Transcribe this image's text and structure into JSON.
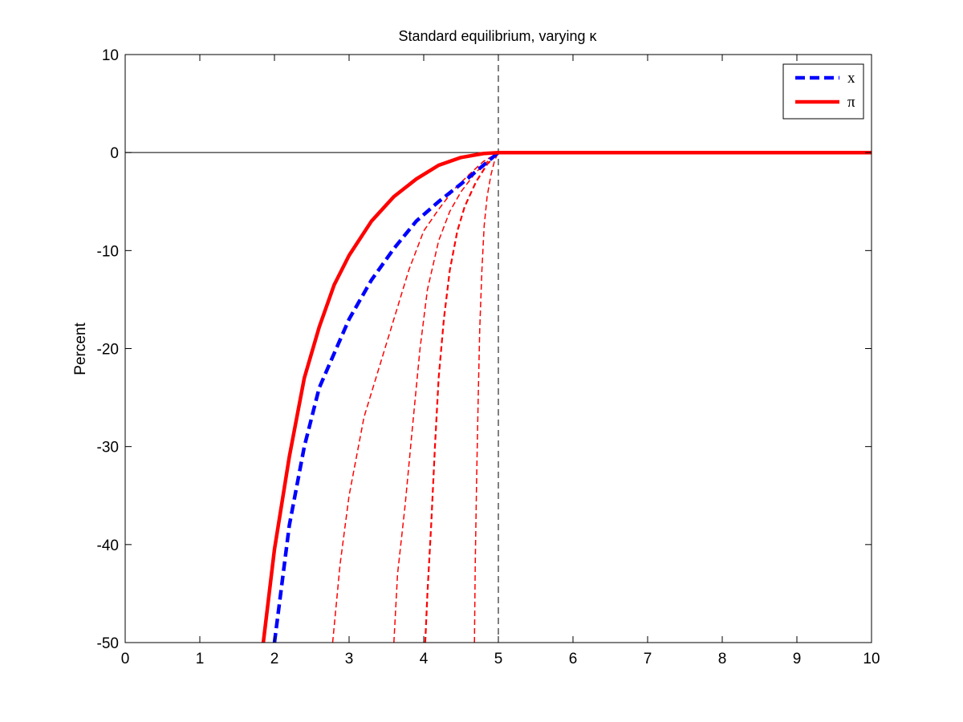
{
  "chart_data": {
    "type": "line",
    "title": "Standard equilibrium, varying κ",
    "xlabel": "",
    "ylabel": "Percent",
    "xlim": [
      0,
      10
    ],
    "ylim": [
      -50,
      10
    ],
    "xticks": [
      0,
      1,
      2,
      3,
      4,
      5,
      6,
      7,
      8,
      9,
      10
    ],
    "yticks": [
      10,
      0,
      -10,
      -20,
      -30,
      -40,
      -50
    ],
    "grid": false,
    "legend_position": "top-right",
    "reference_lines": [
      {
        "orientation": "horizontal",
        "value": 0,
        "style": "solid",
        "color": "#000000"
      },
      {
        "orientation": "vertical",
        "value": 5,
        "style": "dashed",
        "color": "#000000"
      }
    ],
    "series": [
      {
        "name": "x",
        "legend": true,
        "color": "#0000ff",
        "style": "dashed",
        "weight": "thick",
        "points": [
          [
            2.0,
            -50
          ],
          [
            2.2,
            -38
          ],
          [
            2.4,
            -30
          ],
          [
            2.6,
            -24
          ],
          [
            2.8,
            -20.5
          ],
          [
            3.0,
            -17
          ],
          [
            3.3,
            -13
          ],
          [
            3.6,
            -9.8
          ],
          [
            3.9,
            -7
          ],
          [
            4.2,
            -5
          ],
          [
            4.5,
            -3.2
          ],
          [
            4.8,
            -1.3
          ],
          [
            5.0,
            0
          ]
        ]
      },
      {
        "name": "π",
        "legend": true,
        "color": "#ff0000",
        "style": "solid",
        "weight": "thick",
        "points": [
          [
            1.85,
            -50
          ],
          [
            2.0,
            -40.5
          ],
          [
            2.2,
            -31
          ],
          [
            2.4,
            -23
          ],
          [
            2.6,
            -17.8
          ],
          [
            2.8,
            -13.5
          ],
          [
            3.0,
            -10.5
          ],
          [
            3.3,
            -7
          ],
          [
            3.6,
            -4.5
          ],
          [
            3.9,
            -2.7
          ],
          [
            4.2,
            -1.3
          ],
          [
            4.5,
            -0.5
          ],
          [
            4.8,
            -0.1
          ],
          [
            5.0,
            0
          ],
          [
            10.0,
            0
          ]
        ]
      },
      {
        "legend": false,
        "color": "#ff0000",
        "style": "dashed",
        "weight": "thin",
        "points": [
          [
            2.78,
            -50
          ],
          [
            2.88,
            -42
          ],
          [
            3.0,
            -35
          ],
          [
            3.2,
            -27
          ],
          [
            3.4,
            -22
          ],
          [
            3.6,
            -17
          ],
          [
            3.8,
            -12
          ],
          [
            4.0,
            -8
          ],
          [
            4.2,
            -5.8
          ],
          [
            4.4,
            -3.8
          ],
          [
            4.6,
            -2.3
          ],
          [
            4.8,
            -0.9
          ],
          [
            5.0,
            0
          ]
        ]
      },
      {
        "legend": false,
        "color": "#ff0000",
        "style": "dashed",
        "weight": "thin",
        "points": [
          [
            3.6,
            -50
          ],
          [
            3.65,
            -43
          ],
          [
            3.75,
            -36
          ],
          [
            3.85,
            -28
          ],
          [
            3.95,
            -20
          ],
          [
            4.05,
            -14
          ],
          [
            4.2,
            -9
          ],
          [
            4.35,
            -6
          ],
          [
            4.5,
            -4
          ],
          [
            4.7,
            -2
          ],
          [
            4.9,
            -0.6
          ],
          [
            5.0,
            0
          ]
        ]
      },
      {
        "legend": false,
        "color": "#ff0000",
        "style": "dashed",
        "weight": "medium",
        "points": [
          [
            4.02,
            -50
          ],
          [
            4.05,
            -45
          ],
          [
            4.1,
            -38
          ],
          [
            4.15,
            -30
          ],
          [
            4.2,
            -23
          ],
          [
            4.27,
            -17
          ],
          [
            4.35,
            -12
          ],
          [
            4.45,
            -8
          ],
          [
            4.55,
            -5.5
          ],
          [
            4.7,
            -3
          ],
          [
            4.85,
            -1.2
          ],
          [
            5.0,
            0
          ]
        ]
      },
      {
        "legend": false,
        "color": "#ff0000",
        "style": "dashed",
        "weight": "thin",
        "points": [
          [
            4.68,
            -50
          ],
          [
            4.69,
            -42
          ],
          [
            4.71,
            -33
          ],
          [
            4.73,
            -25
          ],
          [
            4.75,
            -18
          ],
          [
            4.78,
            -12
          ],
          [
            4.81,
            -7.5
          ],
          [
            4.85,
            -4.5
          ],
          [
            4.9,
            -2.3
          ],
          [
            4.95,
            -0.8
          ],
          [
            5.0,
            0
          ]
        ]
      }
    ]
  }
}
